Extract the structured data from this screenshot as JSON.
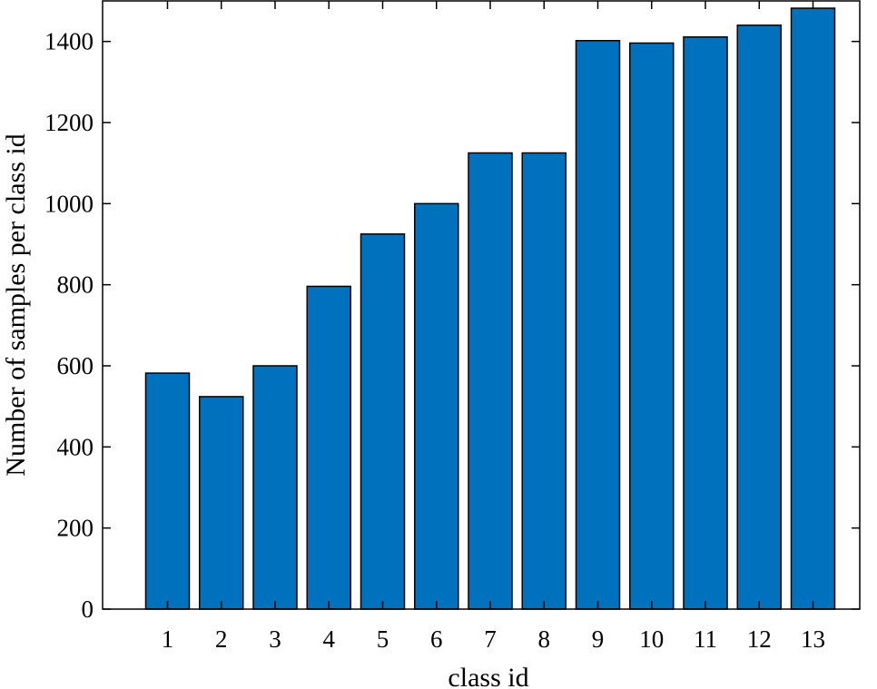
{
  "chart_data": {
    "type": "bar",
    "categories": [
      "1",
      "2",
      "3",
      "4",
      "5",
      "6",
      "7",
      "8",
      "9",
      "10",
      "11",
      "12",
      "13"
    ],
    "values": [
      582,
      524,
      600,
      796,
      925,
      1000,
      1125,
      1125,
      1402,
      1396,
      1411,
      1440,
      1482
    ],
    "xlabel": "class id",
    "ylabel": "Number of samples per class id",
    "ylim": [
      0,
      1500
    ],
    "yticks": [
      0,
      200,
      400,
      600,
      800,
      1000,
      1200,
      1400
    ],
    "grid": false,
    "legend": "none",
    "colors": {
      "bar_fill": "#0072bd",
      "bar_stroke": "#000000",
      "axis": "#000000",
      "background": "#ffffff"
    }
  }
}
